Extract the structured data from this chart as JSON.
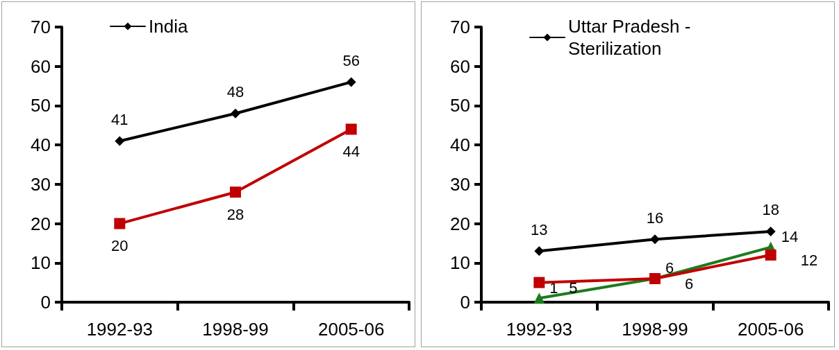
{
  "chart_data": [
    {
      "type": "line",
      "categories": [
        "1992-93",
        "1998-99",
        "2005-06"
      ],
      "series": [
        {
          "name": "India",
          "color": "#000000",
          "marker": "diamond",
          "values": [
            41,
            48,
            56
          ]
        },
        {
          "color": "#c00000",
          "marker": "square",
          "values": [
            20,
            28,
            44
          ]
        }
      ],
      "ylim": [
        0,
        70
      ],
      "yticks": [
        0,
        10,
        20,
        30,
        40,
        50,
        60,
        70
      ],
      "grid": false,
      "legend": "top left",
      "data_labels": true,
      "line_style": "solid"
    },
    {
      "type": "line",
      "categories": [
        "1992-93",
        "1998-99",
        "2005-06"
      ],
      "series": [
        {
          "name": "Uttar Pradesh - Sterilization",
          "color": "#000000",
          "marker": "diamond",
          "values": [
            13,
            16,
            18
          ]
        },
        {
          "color": "#c00000",
          "marker": "square",
          "values": [
            5,
            6,
            12
          ]
        },
        {
          "color": "#1e7a1e",
          "marker": "triangle",
          "values": [
            1,
            6,
            14
          ]
        }
      ],
      "ylim": [
        0,
        70
      ],
      "yticks": [
        0,
        10,
        20,
        30,
        40,
        50,
        60,
        70
      ],
      "grid": false,
      "legend": "top left",
      "data_labels": true,
      "line_style": "solid"
    }
  ]
}
